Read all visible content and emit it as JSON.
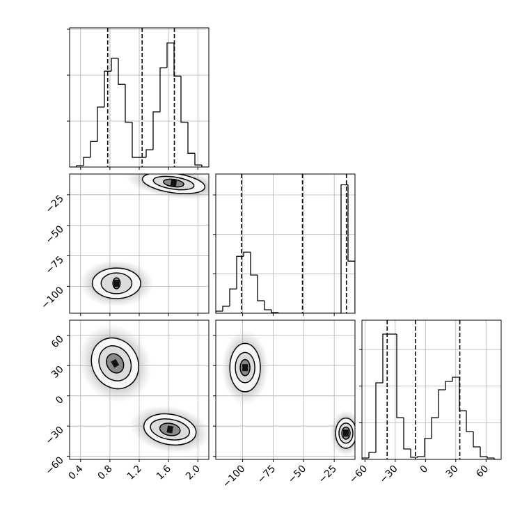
{
  "chart_data": {
    "type": "corner",
    "grid": true,
    "params": [
      {
        "lim": [
          0.25,
          2.15
        ],
        "ticks": [
          0.4,
          0.8,
          1.2,
          1.6,
          {
            "value": 2,
            "label": "2.0"
          }
        ]
      },
      {
        "lim": [
          -122,
          -8
        ],
        "ticks": [
          {
            "value": -100,
            "label": "−100"
          },
          {
            "value": -75,
            "label": "−75"
          },
          {
            "value": -50,
            "label": "−50"
          },
          {
            "value": -25,
            "label": "−25"
          }
        ]
      },
      {
        "lim": [
          -63,
          75
        ],
        "ticks": [
          {
            "value": -60,
            "label": "−60"
          },
          {
            "value": -30,
            "label": "−30"
          },
          0,
          30,
          60
        ]
      }
    ],
    "histograms": [
      {
        "param": 0,
        "bins": [
          0.25,
          0.345,
          0.44,
          0.535,
          0.63,
          0.725,
          0.82,
          0.915,
          1.01,
          1.105,
          1.2,
          1.295,
          1.39,
          1.485,
          1.58,
          1.675,
          1.77,
          1.865,
          1.96,
          2.055,
          2.15
        ],
        "values": [
          0,
          15,
          105,
          278,
          653,
          1043,
          1185,
          900,
          488,
          105,
          105,
          188,
          600,
          1080,
          1350,
          990,
          488,
          150,
          23,
          0
        ],
        "ylim": [
          0,
          1515
        ],
        "yticks": [
          500,
          1000,
          1500
        ],
        "quantiles": [
          0.77,
          1.24,
          1.68
        ]
      },
      {
        "param": 1,
        "bins": [
          -122,
          -116.3,
          -110.6,
          -104.9,
          -99.2,
          -93.5,
          -87.8,
          -82.1,
          -76.4,
          -70.7,
          -65,
          -59.3,
          -53.6,
          -47.9,
          -42.2,
          -36.5,
          -30.8,
          -25.1,
          -19.4,
          -13.7,
          -8
        ],
        "values": [
          53,
          176,
          616,
          1443,
          1549,
          968,
          317,
          88,
          18,
          0,
          0,
          0,
          0,
          0,
          0,
          0,
          0,
          0,
          3256,
          1320
        ],
        "ylim": [
          0,
          3530
        ],
        "yticks": [
          1000,
          2000,
          3000
        ],
        "quantiles": [
          -101,
          -51,
          -15
        ]
      },
      {
        "param": 2,
        "bins": [
          -63,
          -56.1,
          -49.2,
          -42.3,
          -35.4,
          -28.5,
          -21.6,
          -14.7,
          -7.8,
          -0.9,
          6,
          12.9,
          19.8,
          26.7,
          33.6,
          40.5,
          47.4,
          54.3,
          61.2,
          68.1,
          75
        ],
        "values": [
          38,
          190,
          2090,
          3420,
          3420,
          1140,
          285,
          57,
          76,
          570,
          1140,
          1900,
          2128,
          2242,
          1330,
          760,
          342,
          76,
          38,
          0
        ],
        "ylim": [
          0,
          3800
        ],
        "yticks": [
          1000,
          2000,
          3000
        ],
        "quantiles": [
          -38,
          -10,
          34
        ]
      }
    ],
    "densities": [
      {
        "x_param": 0,
        "y_param": 1,
        "blobs": [
          {
            "x": 0.89,
            "y": -97.5,
            "angle": 0,
            "levels": [
              [
                0.33,
                12.5
              ],
              [
                0.21,
                8.5
              ],
              [
                0.05,
                4.5
              ]
            ]
          },
          {
            "x": 1.67,
            "y": -15.4,
            "angle": 8,
            "levels": [
              [
                0.43,
                8
              ],
              [
                0.28,
                5
              ],
              [
                0.14,
                3
              ]
            ]
          }
        ]
      },
      {
        "x_param": 0,
        "y_param": 2,
        "blobs": [
          {
            "x": 0.87,
            "y": 32.2,
            "angle": -30,
            "levels": [
              [
                0.31,
                26
              ],
              [
                0.21,
                18
              ],
              [
                0.11,
                10
              ]
            ]
          },
          {
            "x": 1.62,
            "y": -33.3,
            "angle": 10,
            "levels": [
              [
                0.36,
                15
              ],
              [
                0.27,
                10
              ],
              [
                0.14,
                6
              ]
            ]
          }
        ]
      },
      {
        "x_param": 1,
        "y_param": 2,
        "blobs": [
          {
            "x": -98,
            "y": 28,
            "angle": 0,
            "levels": [
              [
                12.5,
                24
              ],
              [
                8,
                15
              ],
              [
                4,
                8
              ]
            ]
          },
          {
            "x": -15.4,
            "y": -37,
            "angle": 0,
            "levels": [
              [
                8.5,
                15
              ],
              [
                5.7,
                10
              ],
              [
                3.4,
                6
              ]
            ]
          }
        ]
      }
    ]
  }
}
